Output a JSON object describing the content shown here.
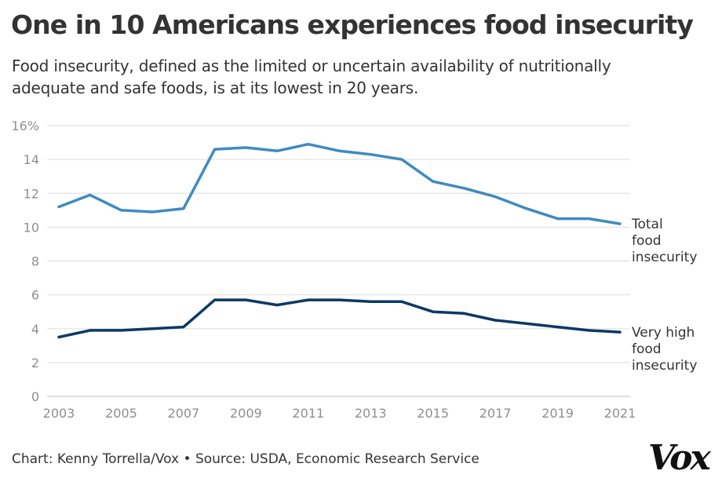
{
  "title": "One in 10 Americans experiences food insecurity",
  "subtitle": "Food insecurity, defined as the limited or uncertain availability of nutritionally adequate and safe foods, is at its lowest in 20 years.",
  "footer": "Chart: Kenny Torrella/Vox • Source: USDA, Economic Research Service",
  "logo": "Vox",
  "chart_data": {
    "type": "line",
    "title": "One in 10 Americans experiences food insecurity",
    "xlabel": "",
    "ylabel": "",
    "xlim": [
      2003,
      2021
    ],
    "ylim": [
      0,
      16
    ],
    "grid": true,
    "legend": "direct labels at right end of lines",
    "x": [
      2003,
      2004,
      2005,
      2006,
      2007,
      2008,
      2009,
      2010,
      2011,
      2012,
      2013,
      2014,
      2015,
      2016,
      2017,
      2018,
      2019,
      2020,
      2021
    ],
    "y_ticks": [
      0,
      2,
      4,
      6,
      8,
      10,
      12,
      14,
      16
    ],
    "y_tick_labels": [
      "0",
      "2",
      "4",
      "6",
      "8",
      "10",
      "12",
      "14",
      "16%"
    ],
    "x_ticks": [
      2003,
      2005,
      2007,
      2009,
      2011,
      2013,
      2015,
      2017,
      2019,
      2021
    ],
    "x_tick_labels": [
      "2003",
      "2005",
      "2007",
      "2009",
      "2011",
      "2013",
      "2015",
      "2017",
      "2019",
      "2021"
    ],
    "series": [
      {
        "name": "Total food insecurity",
        "label_lines": [
          "Total",
          "food",
          "insecurity"
        ],
        "color": "#3f8bc0",
        "values": [
          11.2,
          11.9,
          11.0,
          10.9,
          11.1,
          14.6,
          14.7,
          14.5,
          14.9,
          14.5,
          14.3,
          14.0,
          12.7,
          12.3,
          11.8,
          11.1,
          10.5,
          10.5,
          10.2
        ]
      },
      {
        "name": "Very high food insecurity",
        "label_lines": [
          "Very high",
          "food",
          "insecurity"
        ],
        "color": "#0c3866",
        "values": [
          3.5,
          3.9,
          3.9,
          4.0,
          4.1,
          5.7,
          5.7,
          5.4,
          5.7,
          5.7,
          5.6,
          5.6,
          5.0,
          4.9,
          4.5,
          4.3,
          4.1,
          3.9,
          3.8
        ]
      }
    ]
  }
}
